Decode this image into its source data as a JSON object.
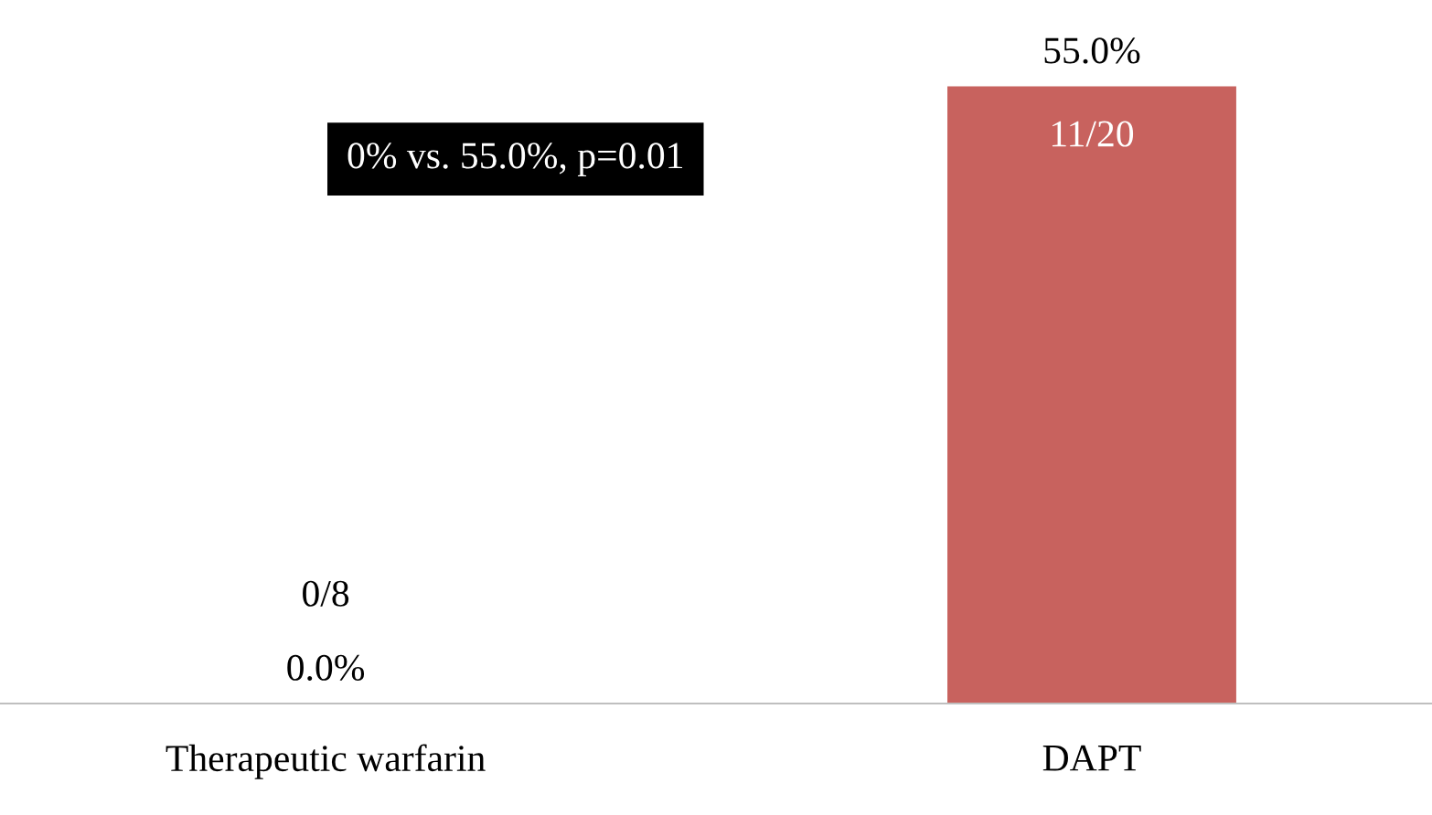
{
  "chart_data": {
    "type": "bar",
    "categories": [
      "Therapeutic warfarin",
      "DAPT"
    ],
    "values": [
      0,
      55
    ],
    "color": "#c8625e",
    "value_labels": [
      "0.0%",
      "55.0%"
    ],
    "grid": false,
    "legend": false,
    "annotations": [
      {
        "text": "0/8",
        "x": "Therapeutic warfarin",
        "y": 0
      },
      {
        "text": "11/20",
        "x": "DAPT",
        "y": 55
      },
      "0% vs. 55.0%, p=0.01"
    ]
  }
}
